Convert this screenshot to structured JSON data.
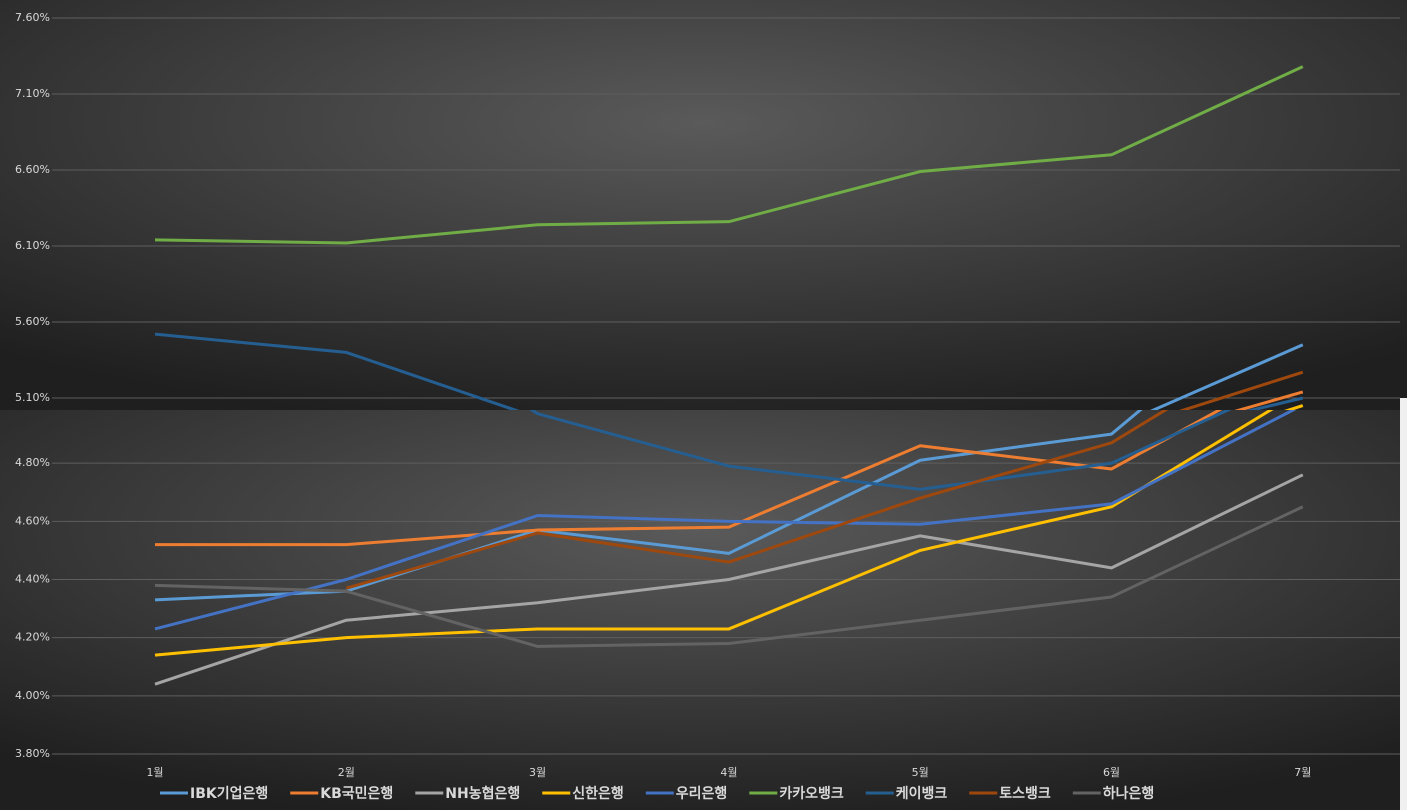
{
  "chart_data": {
    "type": "line",
    "categories": [
      "1월",
      "2월",
      "3월",
      "4월",
      "5월",
      "6월",
      "7월"
    ],
    "panels": [
      {
        "ylim": [
          5.1,
          7.6
        ],
        "yticks": [
          {
            "value": 5.1,
            "label": "5.10%"
          },
          {
            "value": 5.6,
            "label": "5.60%"
          },
          {
            "value": 6.1,
            "label": "6.10%"
          },
          {
            "value": 6.6,
            "label": "6.60%"
          },
          {
            "value": 7.1,
            "label": "7.10%"
          },
          {
            "value": 7.6,
            "label": "7.60%"
          }
        ]
      },
      {
        "ylim": [
          3.8,
          5.0
        ],
        "yticks": [
          {
            "value": 3.8,
            "label": "3.80%"
          },
          {
            "value": 4.0,
            "label": "4.00%"
          },
          {
            "value": 4.2,
            "label": "4.20%"
          },
          {
            "value": 4.4,
            "label": "4.40%"
          },
          {
            "value": 4.6,
            "label": "4.60%"
          },
          {
            "value": 4.8,
            "label": "4.80%"
          }
        ]
      }
    ],
    "grid": true,
    "series": [
      {
        "name": "IBK기업은행",
        "color": "#5b9bd5",
        "values": [
          4.33,
          4.36,
          4.57,
          4.49,
          4.81,
          4.9,
          5.45
        ]
      },
      {
        "name": "KB국민은행",
        "color": "#ed7d31",
        "values": [
          4.52,
          4.52,
          4.57,
          4.58,
          4.86,
          4.78,
          5.14
        ]
      },
      {
        "name": "NH농협은행",
        "color": "#a5a5a5",
        "values": [
          4.04,
          4.26,
          4.32,
          4.4,
          4.55,
          4.44,
          4.76
        ]
      },
      {
        "name": "신한은행",
        "color": "#ffc000",
        "values": [
          4.14,
          4.2,
          4.23,
          4.23,
          4.5,
          4.65,
          5.05
        ]
      },
      {
        "name": "우리은행",
        "color": "#4472c4",
        "values": [
          4.23,
          4.4,
          4.62,
          4.6,
          4.59,
          4.66,
          5.0
        ]
      },
      {
        "name": "카카오뱅크",
        "color": "#70ad47",
        "values": [
          6.14,
          6.12,
          6.24,
          6.26,
          6.59,
          6.7,
          7.28
        ]
      },
      {
        "name": "케이뱅크",
        "color": "#255e91",
        "values": [
          5.52,
          5.4,
          4.97,
          4.79,
          4.71,
          4.8,
          5.1
        ]
      },
      {
        "name": "토스뱅크",
        "color": "#9e480e",
        "values": [
          null,
          4.37,
          4.56,
          4.46,
          4.68,
          4.87,
          5.27
        ]
      },
      {
        "name": "하나은행",
        "color": "#636363",
        "values": [
          4.38,
          4.36,
          4.17,
          4.18,
          4.26,
          4.34,
          4.65
        ]
      }
    ]
  }
}
